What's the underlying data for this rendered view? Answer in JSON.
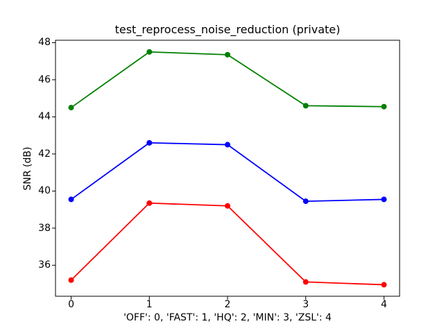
{
  "figure": {
    "background": "#ffffff",
    "text_color": "#000000"
  },
  "chart_data": {
    "type": "line",
    "title": "test_reprocess_noise_reduction (private)",
    "xlabel": "'OFF': 0, 'FAST': 1, 'HQ': 2, 'MIN': 3, 'ZSL': 4",
    "ylabel": "SNR (dB)",
    "x": [
      0,
      1,
      2,
      3,
      4
    ],
    "series": [
      {
        "name": "green",
        "color": "#008000",
        "values": [
          44.5,
          47.5,
          47.35,
          44.6,
          44.55
        ]
      },
      {
        "name": "blue",
        "color": "#0000ff",
        "values": [
          39.55,
          42.6,
          42.5,
          39.45,
          39.55
        ]
      },
      {
        "name": "red",
        "color": "#ff0000",
        "values": [
          35.2,
          39.35,
          39.2,
          35.1,
          34.95
        ]
      }
    ],
    "xticks": [
      0,
      1,
      2,
      3,
      4
    ],
    "yticks": [
      36,
      38,
      40,
      42,
      44,
      46,
      48
    ],
    "xlim": [
      -0.2,
      4.2
    ],
    "ylim": [
      34.33,
      48.13
    ],
    "grid": false,
    "legend": "none",
    "marker": "circle",
    "line_width": 1.8,
    "marker_radius": 4,
    "axis_color": "#000000"
  }
}
